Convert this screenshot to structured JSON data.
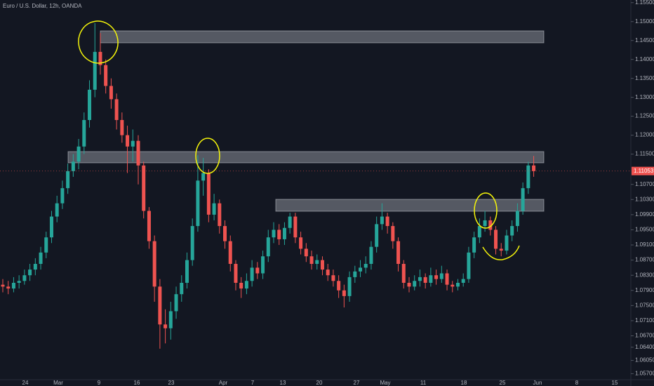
{
  "chart_data": {
    "type": "candlestick",
    "title": "Euro / U.S. Dollar, 12h, OANDA",
    "up_color": "#26a69a",
    "down_color": "#ef5350",
    "open": [
      1.0805,
      1.08,
      1.0795,
      1.081,
      1.0815,
      1.083,
      1.0845,
      1.086,
      1.089,
      1.093,
      1.0985,
      1.102,
      1.106,
      1.1105,
      1.113,
      1.117,
      1.124,
      1.132,
      1.142,
      1.1385,
      1.133,
      1.1295,
      1.124,
      1.12,
      1.117,
      1.1185,
      1.112,
      1.1,
      1.092,
      1.08,
      1.07,
      1.069,
      1.0735,
      1.078,
      1.081,
      1.087,
      1.096,
      1.108,
      1.11,
      1.099,
      1.102,
      1.096,
      1.092,
      1.086,
      1.081,
      1.0795,
      1.0815,
      1.085,
      1.0835,
      1.088,
      1.093,
      1.095,
      1.0925,
      1.0955,
      1.0985,
      1.093,
      1.09,
      1.088,
      1.086,
      1.087,
      1.0845,
      1.083,
      1.0815,
      1.079,
      1.0775,
      1.0825,
      1.084,
      1.085,
      1.086,
      1.0905,
      1.0965,
      1.0985,
      1.096,
      1.092,
      1.086,
      1.081,
      1.08,
      1.0815,
      1.0825,
      1.081,
      1.083,
      1.082,
      1.0835,
      1.0805,
      1.08,
      1.081,
      1.082,
      1.089,
      1.093,
      1.096,
      1.0975,
      1.095,
      1.09,
      1.0895,
      1.0935,
      1.096,
      1.1,
      1.106,
      1.112
    ],
    "high": [
      1.082,
      1.0815,
      1.0825,
      1.083,
      1.0845,
      1.086,
      1.0875,
      1.0905,
      1.0945,
      1.1,
      1.104,
      1.108,
      1.1125,
      1.115,
      1.119,
      1.126,
      1.1345,
      1.1496,
      1.147,
      1.14,
      1.135,
      1.131,
      1.126,
      1.1225,
      1.1215,
      1.12,
      1.113,
      1.101,
      1.0935,
      1.082,
      1.074,
      1.076,
      1.08,
      1.083,
      1.089,
      1.098,
      1.1147,
      1.114,
      1.111,
      1.1045,
      1.103,
      1.0975,
      1.0935,
      1.087,
      1.0825,
      1.0835,
      1.087,
      1.0865,
      1.0895,
      1.095,
      1.097,
      1.0965,
      1.097,
      1.0995,
      1.0995,
      1.0945,
      1.0915,
      1.0895,
      1.0885,
      1.088,
      1.086,
      1.0845,
      1.083,
      1.0805,
      1.084,
      1.0855,
      1.087,
      1.088,
      1.092,
      1.0985,
      1.102,
      1.0995,
      1.097,
      1.093,
      1.087,
      1.0825,
      1.083,
      1.0845,
      1.0835,
      1.085,
      1.0845,
      1.0855,
      1.0845,
      1.0815,
      1.082,
      1.0835,
      1.0905,
      1.0945,
      1.098,
      1.1,
      1.0985,
      1.096,
      1.0915,
      1.095,
      1.0975,
      1.102,
      1.1075,
      1.113,
      1.1145
    ],
    "low": [
      1.0785,
      1.078,
      1.0785,
      1.0795,
      1.0805,
      1.0815,
      1.083,
      1.0845,
      1.0875,
      1.0915,
      1.097,
      1.1005,
      1.1045,
      1.109,
      1.111,
      1.115,
      1.122,
      1.13,
      1.136,
      1.131,
      1.127,
      1.1215,
      1.118,
      1.11,
      1.113,
      1.107,
      1.098,
      1.09,
      1.076,
      1.0636,
      1.065,
      1.066,
      1.0715,
      1.076,
      1.0795,
      1.0855,
      1.0945,
      1.104,
      1.097,
      1.0975,
      1.094,
      1.09,
      1.084,
      1.079,
      1.077,
      1.078,
      1.08,
      1.082,
      1.082,
      1.0865,
      1.0915,
      1.091,
      1.091,
      1.094,
      1.0915,
      1.0885,
      1.0865,
      1.0845,
      1.0845,
      1.083,
      1.0815,
      1.08,
      1.077,
      1.0745,
      1.076,
      1.081,
      1.0825,
      1.0835,
      1.0845,
      1.089,
      1.095,
      1.094,
      1.09,
      1.084,
      1.0795,
      1.0785,
      1.079,
      1.08,
      1.0795,
      1.08,
      1.0805,
      1.081,
      1.079,
      1.0785,
      1.079,
      1.08,
      1.081,
      1.0875,
      1.0915,
      1.0945,
      1.0935,
      1.0885,
      1.088,
      1.0885,
      1.092,
      1.0945,
      1.099,
      1.1045,
      1.109
    ],
    "close": [
      1.08,
      1.0795,
      1.081,
      1.0815,
      1.083,
      1.0845,
      1.086,
      1.089,
      1.093,
      1.0985,
      1.102,
      1.106,
      1.1105,
      1.113,
      1.117,
      1.124,
      1.132,
      1.142,
      1.1385,
      1.133,
      1.1295,
      1.124,
      1.12,
      1.117,
      1.1185,
      1.112,
      1.1,
      1.092,
      1.08,
      1.07,
      1.069,
      1.0735,
      1.078,
      1.081,
      1.087,
      1.096,
      1.108,
      1.11,
      1.099,
      1.102,
      1.096,
      1.092,
      1.086,
      1.081,
      1.0795,
      1.0815,
      1.085,
      1.0835,
      1.088,
      1.093,
      1.095,
      1.0925,
      1.0955,
      1.0985,
      1.093,
      1.09,
      1.088,
      1.086,
      1.087,
      1.0845,
      1.083,
      1.0815,
      1.079,
      1.0775,
      1.0825,
      1.084,
      1.085,
      1.086,
      1.0905,
      1.0965,
      1.0985,
      1.096,
      1.092,
      1.086,
      1.081,
      1.08,
      1.0815,
      1.0825,
      1.081,
      1.083,
      1.082,
      1.0835,
      1.0805,
      1.08,
      1.081,
      1.082,
      1.089,
      1.093,
      1.096,
      1.0975,
      1.095,
      1.09,
      1.0895,
      1.0935,
      1.096,
      1.1,
      1.106,
      1.112,
      1.1105
    ],
    "last_price": 1.11053,
    "ylim": [
      1.0556,
      1.1557
    ],
    "yticks": [
      {
        "value": 1.155,
        "label": "1.15500"
      },
      {
        "value": 1.15,
        "label": "1.15000"
      },
      {
        "value": 1.145,
        "label": "1.14500"
      },
      {
        "value": 1.14,
        "label": "1.14000"
      },
      {
        "value": 1.135,
        "label": "1.13500"
      },
      {
        "value": 1.13,
        "label": "1.13000"
      },
      {
        "value": 1.125,
        "label": "1.12500"
      },
      {
        "value": 1.12,
        "label": "1.12000"
      },
      {
        "value": 1.115,
        "label": "1.11500"
      },
      {
        "value": 1.107,
        "label": "1.10700"
      },
      {
        "value": 1.103,
        "label": "1.10300"
      },
      {
        "value": 1.099,
        "label": "1.09900"
      },
      {
        "value": 1.095,
        "label": "1.09500"
      },
      {
        "value": 1.091,
        "label": "1.09100"
      },
      {
        "value": 1.087,
        "label": "1.08700"
      },
      {
        "value": 1.083,
        "label": "1.08300"
      },
      {
        "value": 1.079,
        "label": "1.07900"
      },
      {
        "value": 1.075,
        "label": "1.07500"
      },
      {
        "value": 1.071,
        "label": "1.07100"
      },
      {
        "value": 1.067,
        "label": "1.06700"
      },
      {
        "value": 1.064,
        "label": "1.06400"
      },
      {
        "value": 1.0605,
        "label": "1.06050"
      },
      {
        "value": 1.057,
        "label": "1.05700"
      }
    ],
    "xtick_labels": [
      "24",
      "Mar",
      "9",
      "16",
      "23",
      "Apr",
      "7",
      "13",
      "20",
      "27",
      "May",
      "11",
      "18",
      "25",
      "Jun",
      "8",
      "15"
    ],
    "grid": false
  }
}
